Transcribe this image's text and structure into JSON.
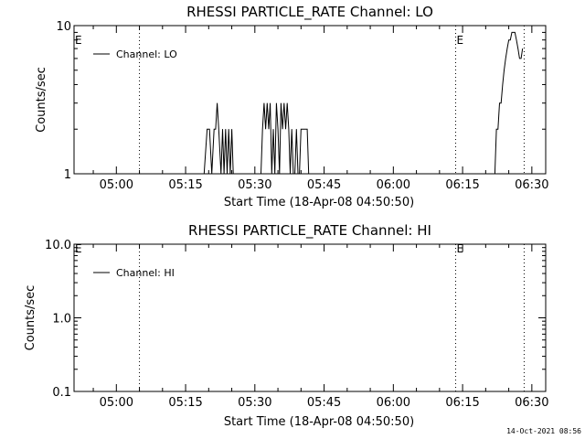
{
  "chart_data": [
    {
      "type": "line",
      "title": "RHESSI PARTICLE_RATE Channel: LO",
      "xlabel": "Start Time (18-Apr-08 04:50:50)",
      "ylabel": "Counts/sec",
      "y_scale": "log",
      "ylim": [
        1,
        10
      ],
      "y_ticks": [
        "1",
        "10"
      ],
      "x_ticks": [
        "05:00",
        "05:15",
        "05:30",
        "05:45",
        "06:00",
        "06:15",
        "06:30"
      ],
      "legend": "top-left",
      "series": [
        {
          "name": "Channel: LO",
          "x": [
            "05:19:00",
            "05:19:40",
            "05:20:10",
            "05:20:40",
            "05:21:10",
            "05:21:30",
            "05:21:50",
            "05:22:10",
            "05:22:40",
            "05:23:00",
            "05:23:20",
            "05:23:40",
            "05:24:00",
            "05:24:20",
            "05:24:40",
            "05:25:00",
            "05:25:20",
            "05:31:20",
            "05:31:40",
            "05:32:00",
            "05:32:20",
            "05:32:40",
            "05:33:00",
            "05:33:20",
            "05:33:40",
            "05:34:00",
            "05:34:20",
            "05:34:40",
            "05:35:00",
            "05:35:20",
            "05:35:40",
            "05:36:00",
            "05:36:20",
            "05:36:40",
            "05:37:00",
            "05:37:20",
            "05:37:40",
            "05:38:00",
            "05:38:20",
            "05:38:40",
            "05:39:00",
            "05:39:20",
            "05:39:40",
            "05:40:00",
            "05:40:20",
            "05:40:40",
            "05:41:00",
            "05:41:20",
            "05:41:40",
            "05:42:00",
            "05:42:20",
            "06:22:00",
            "06:22:20",
            "06:22:40",
            "06:23:00",
            "06:23:20",
            "06:23:40",
            "06:24:00",
            "06:24:20",
            "06:24:40",
            "06:25:00",
            "06:25:20",
            "06:25:40",
            "06:26:00",
            "06:26:20",
            "06:26:40",
            "06:27:00",
            "06:27:20",
            "06:27:40",
            "06:28:00"
          ],
          "values": [
            1,
            2,
            2,
            1,
            2,
            2,
            3,
            2,
            1,
            2,
            1,
            2,
            1,
            2,
            1,
            2,
            1,
            1,
            2,
            3,
            2,
            3,
            2,
            3,
            1,
            2,
            1,
            3,
            2,
            1,
            3,
            2,
            3,
            2,
            3,
            2,
            1,
            2,
            1,
            1,
            2,
            1,
            1,
            2,
            2,
            2,
            2,
            2,
            1,
            1,
            1,
            1,
            2,
            2,
            3,
            3,
            4,
            5,
            6,
            7,
            8,
            8,
            9,
            9,
            9,
            8,
            7,
            6,
            6,
            7
          ]
        }
      ],
      "markers": [
        {
          "label": "E",
          "time": "04:50:50"
        },
        {
          "label": "E",
          "time": "06:13:30"
        }
      ],
      "dotted_lines": [
        "05:05:00",
        "06:13:30",
        "06:28:20"
      ]
    },
    {
      "type": "line",
      "title": "RHESSI PARTICLE_RATE Channel: HI",
      "xlabel": "Start Time (18-Apr-08 04:50:50)",
      "ylabel": "Counts/sec",
      "y_scale": "log",
      "ylim": [
        0.1,
        10
      ],
      "y_ticks": [
        "0.1",
        "1.0",
        "10.0"
      ],
      "x_ticks": [
        "05:00",
        "05:15",
        "05:30",
        "05:45",
        "06:00",
        "06:15",
        "06:30"
      ],
      "legend": "top-left",
      "series": [
        {
          "name": "Channel: HI",
          "x": [],
          "values": []
        }
      ],
      "markers": [
        {
          "label": "E",
          "time": "04:50:50"
        },
        {
          "label": "E",
          "time": "06:13:30"
        }
      ],
      "dotted_lines": [
        "05:05:00",
        "06:13:30",
        "06:28:20"
      ]
    }
  ],
  "footer": {
    "timestamp": "14-Oct-2021 08:56"
  }
}
